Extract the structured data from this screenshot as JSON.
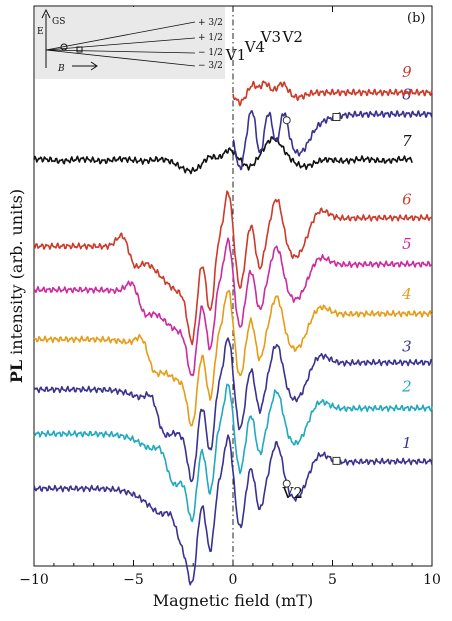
{
  "chart_data": {
    "type": "line",
    "panel_label": "(b)",
    "xlabel": "Magnetic field (mT)",
    "ylabel_bold": "PL",
    "ylabel_rest": "intensity (arb. units)",
    "xlim": [
      -10,
      10
    ],
    "xticks": [
      -10,
      -5,
      0,
      5,
      10
    ],
    "xtick_labels": [
      "−10",
      "−5",
      "0",
      "5",
      "10"
    ],
    "zero_line": 0,
    "peak_labels": [
      {
        "text": "V1",
        "x": 0.15
      },
      {
        "text": "V4",
        "x": 1.1
      },
      {
        "text": "V3",
        "x": 1.9
      },
      {
        "text": "V2",
        "x": 3.0
      }
    ],
    "v2_label": {
      "text": "V2",
      "x": 3.0
    },
    "series": [
      {
        "name": "1",
        "color": "#3a3290",
        "offset": 0.1,
        "amp": 1.0,
        "xmin": -10,
        "xmax": 10,
        "label_x": 8.5,
        "circle_x": 2.7,
        "square_x": 5.2
      },
      {
        "name": "2",
        "color": "#21a9c0",
        "offset": 0.22,
        "amp": 0.95,
        "xmin": -10,
        "xmax": 10,
        "label_x": 8.5
      },
      {
        "name": "3",
        "color": "#3a3290",
        "offset": 0.32,
        "amp": 1.0,
        "xmin": -10,
        "xmax": 10,
        "label_x": 8.5
      },
      {
        "name": "4",
        "color": "#e69c16",
        "offset": 0.43,
        "amp": 0.95,
        "xmin": -10,
        "xmax": 10,
        "label_x": 8.5
      },
      {
        "name": "5",
        "color": "#cc2ba0",
        "offset": 0.54,
        "amp": 0.95,
        "xmin": -10,
        "xmax": 10,
        "label_x": 8.5
      },
      {
        "name": "6",
        "color": "#cc3a2a",
        "offset": 0.64,
        "amp": 1.05,
        "xmin": -10,
        "xmax": 10,
        "label_x": 8.5
      },
      {
        "name": "7",
        "color": "#111111",
        "offset": 0.8,
        "amp": 0.3,
        "xmin": -10,
        "xmax": 9,
        "label_x": 8.5
      },
      {
        "name": "8",
        "color": "#3a3290",
        "offset": 0.88,
        "amp": 0.55,
        "xmin": 0,
        "xmax": 10,
        "label_x": 8.5,
        "circle_x": 2.7,
        "square_x": 5.2
      },
      {
        "name": "9",
        "color": "#cc3a2a",
        "offset": 0.95,
        "amp": 0.22,
        "xmin": 0,
        "xmax": 10,
        "label_x": 8.5
      }
    ],
    "inset": {
      "axis_label": "E",
      "state_label": "GS",
      "field_label": "B",
      "levels": [
        "+ 3/2",
        "+ 1/2",
        "− 1/2",
        "− 3/2"
      ]
    }
  }
}
